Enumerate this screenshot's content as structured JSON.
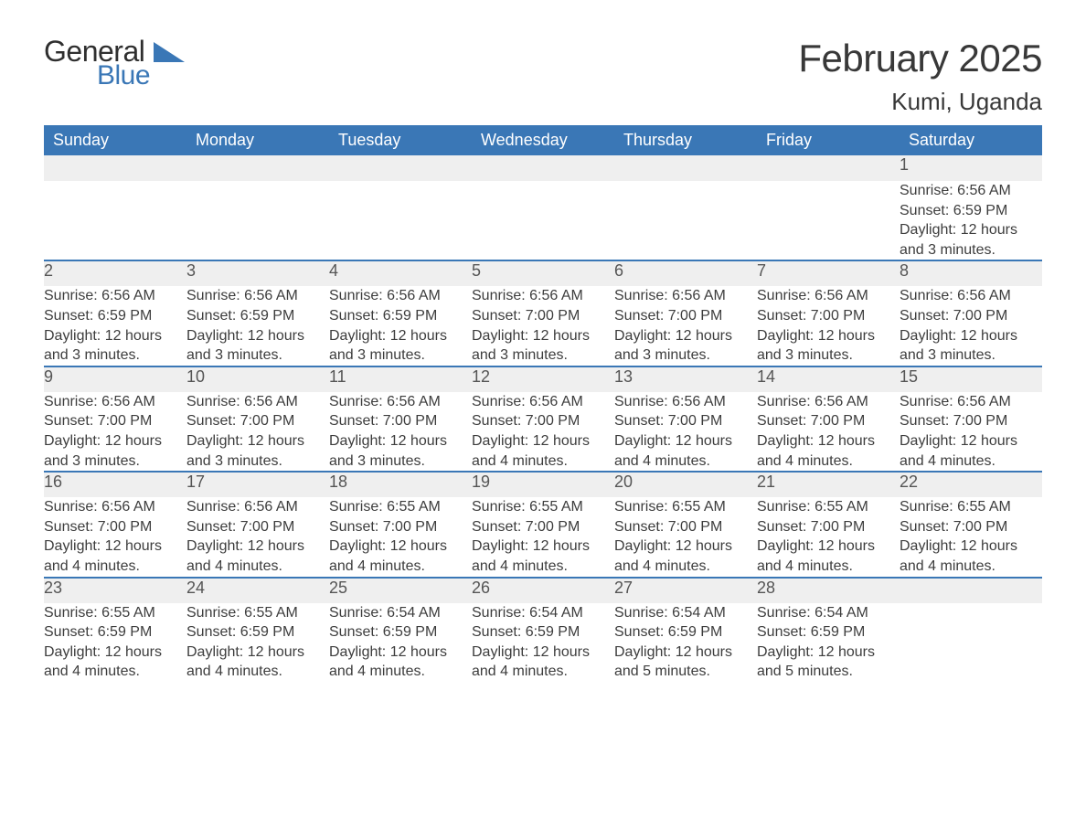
{
  "logo": {
    "text_top": "General",
    "text_bottom": "Blue",
    "shape_color": "#3a77b6",
    "text_top_color": "#2f2f2f",
    "text_bottom_color": "#3a77b6"
  },
  "header": {
    "month_title": "February 2025",
    "location": "Kumi, Uganda"
  },
  "colors": {
    "header_bg": "#3a77b6",
    "header_text": "#ffffff",
    "daynum_bg": "#efefef",
    "daynum_text": "#555555",
    "body_text": "#3d3d3d",
    "rule": "#3a77b6",
    "page_bg": "#ffffff"
  },
  "typography": {
    "month_title_fontsize": 42,
    "location_fontsize": 26,
    "weekday_header_fontsize": 18,
    "daynum_fontsize": 18,
    "detail_fontsize": 16
  },
  "calendar": {
    "type": "table",
    "weekday_labels": [
      "Sunday",
      "Monday",
      "Tuesday",
      "Wednesday",
      "Thursday",
      "Friday",
      "Saturday"
    ],
    "weeks": [
      {
        "days": [
          {
            "n": "",
            "sunrise": "",
            "sunset": "",
            "daylight": ""
          },
          {
            "n": "",
            "sunrise": "",
            "sunset": "",
            "daylight": ""
          },
          {
            "n": "",
            "sunrise": "",
            "sunset": "",
            "daylight": ""
          },
          {
            "n": "",
            "sunrise": "",
            "sunset": "",
            "daylight": ""
          },
          {
            "n": "",
            "sunrise": "",
            "sunset": "",
            "daylight": ""
          },
          {
            "n": "",
            "sunrise": "",
            "sunset": "",
            "daylight": ""
          },
          {
            "n": "1",
            "sunrise": "Sunrise: 6:56 AM",
            "sunset": "Sunset: 6:59 PM",
            "daylight": "Daylight: 12 hours and 3 minutes."
          }
        ]
      },
      {
        "days": [
          {
            "n": "2",
            "sunrise": "Sunrise: 6:56 AM",
            "sunset": "Sunset: 6:59 PM",
            "daylight": "Daylight: 12 hours and 3 minutes."
          },
          {
            "n": "3",
            "sunrise": "Sunrise: 6:56 AM",
            "sunset": "Sunset: 6:59 PM",
            "daylight": "Daylight: 12 hours and 3 minutes."
          },
          {
            "n": "4",
            "sunrise": "Sunrise: 6:56 AM",
            "sunset": "Sunset: 6:59 PM",
            "daylight": "Daylight: 12 hours and 3 minutes."
          },
          {
            "n": "5",
            "sunrise": "Sunrise: 6:56 AM",
            "sunset": "Sunset: 7:00 PM",
            "daylight": "Daylight: 12 hours and 3 minutes."
          },
          {
            "n": "6",
            "sunrise": "Sunrise: 6:56 AM",
            "sunset": "Sunset: 7:00 PM",
            "daylight": "Daylight: 12 hours and 3 minutes."
          },
          {
            "n": "7",
            "sunrise": "Sunrise: 6:56 AM",
            "sunset": "Sunset: 7:00 PM",
            "daylight": "Daylight: 12 hours and 3 minutes."
          },
          {
            "n": "8",
            "sunrise": "Sunrise: 6:56 AM",
            "sunset": "Sunset: 7:00 PM",
            "daylight": "Daylight: 12 hours and 3 minutes."
          }
        ]
      },
      {
        "days": [
          {
            "n": "9",
            "sunrise": "Sunrise: 6:56 AM",
            "sunset": "Sunset: 7:00 PM",
            "daylight": "Daylight: 12 hours and 3 minutes."
          },
          {
            "n": "10",
            "sunrise": "Sunrise: 6:56 AM",
            "sunset": "Sunset: 7:00 PM",
            "daylight": "Daylight: 12 hours and 3 minutes."
          },
          {
            "n": "11",
            "sunrise": "Sunrise: 6:56 AM",
            "sunset": "Sunset: 7:00 PM",
            "daylight": "Daylight: 12 hours and 3 minutes."
          },
          {
            "n": "12",
            "sunrise": "Sunrise: 6:56 AM",
            "sunset": "Sunset: 7:00 PM",
            "daylight": "Daylight: 12 hours and 4 minutes."
          },
          {
            "n": "13",
            "sunrise": "Sunrise: 6:56 AM",
            "sunset": "Sunset: 7:00 PM",
            "daylight": "Daylight: 12 hours and 4 minutes."
          },
          {
            "n": "14",
            "sunrise": "Sunrise: 6:56 AM",
            "sunset": "Sunset: 7:00 PM",
            "daylight": "Daylight: 12 hours and 4 minutes."
          },
          {
            "n": "15",
            "sunrise": "Sunrise: 6:56 AM",
            "sunset": "Sunset: 7:00 PM",
            "daylight": "Daylight: 12 hours and 4 minutes."
          }
        ]
      },
      {
        "days": [
          {
            "n": "16",
            "sunrise": "Sunrise: 6:56 AM",
            "sunset": "Sunset: 7:00 PM",
            "daylight": "Daylight: 12 hours and 4 minutes."
          },
          {
            "n": "17",
            "sunrise": "Sunrise: 6:56 AM",
            "sunset": "Sunset: 7:00 PM",
            "daylight": "Daylight: 12 hours and 4 minutes."
          },
          {
            "n": "18",
            "sunrise": "Sunrise: 6:55 AM",
            "sunset": "Sunset: 7:00 PM",
            "daylight": "Daylight: 12 hours and 4 minutes."
          },
          {
            "n": "19",
            "sunrise": "Sunrise: 6:55 AM",
            "sunset": "Sunset: 7:00 PM",
            "daylight": "Daylight: 12 hours and 4 minutes."
          },
          {
            "n": "20",
            "sunrise": "Sunrise: 6:55 AM",
            "sunset": "Sunset: 7:00 PM",
            "daylight": "Daylight: 12 hours and 4 minutes."
          },
          {
            "n": "21",
            "sunrise": "Sunrise: 6:55 AM",
            "sunset": "Sunset: 7:00 PM",
            "daylight": "Daylight: 12 hours and 4 minutes."
          },
          {
            "n": "22",
            "sunrise": "Sunrise: 6:55 AM",
            "sunset": "Sunset: 7:00 PM",
            "daylight": "Daylight: 12 hours and 4 minutes."
          }
        ]
      },
      {
        "days": [
          {
            "n": "23",
            "sunrise": "Sunrise: 6:55 AM",
            "sunset": "Sunset: 6:59 PM",
            "daylight": "Daylight: 12 hours and 4 minutes."
          },
          {
            "n": "24",
            "sunrise": "Sunrise: 6:55 AM",
            "sunset": "Sunset: 6:59 PM",
            "daylight": "Daylight: 12 hours and 4 minutes."
          },
          {
            "n": "25",
            "sunrise": "Sunrise: 6:54 AM",
            "sunset": "Sunset: 6:59 PM",
            "daylight": "Daylight: 12 hours and 4 minutes."
          },
          {
            "n": "26",
            "sunrise": "Sunrise: 6:54 AM",
            "sunset": "Sunset: 6:59 PM",
            "daylight": "Daylight: 12 hours and 4 minutes."
          },
          {
            "n": "27",
            "sunrise": "Sunrise: 6:54 AM",
            "sunset": "Sunset: 6:59 PM",
            "daylight": "Daylight: 12 hours and 5 minutes."
          },
          {
            "n": "28",
            "sunrise": "Sunrise: 6:54 AM",
            "sunset": "Sunset: 6:59 PM",
            "daylight": "Daylight: 12 hours and 5 minutes."
          },
          {
            "n": "",
            "sunrise": "",
            "sunset": "",
            "daylight": ""
          }
        ]
      }
    ]
  }
}
